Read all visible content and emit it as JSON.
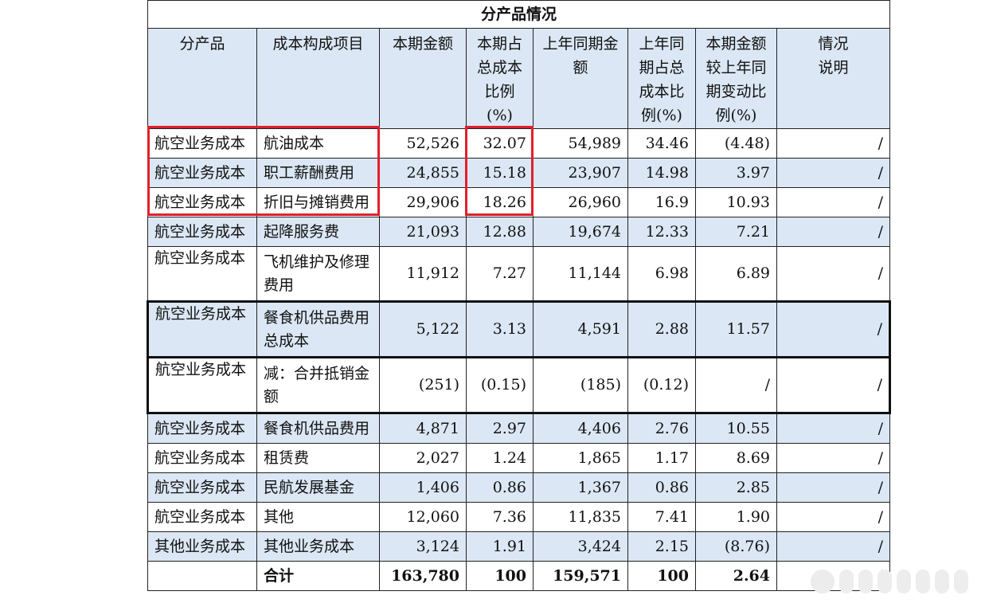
{
  "table": {
    "title": "分产品情况",
    "headers": [
      "分产品",
      "成本构成项目",
      "本期金额",
      "本期占\n总成本\n比例\n(%)",
      "上年同期金\n额",
      "上年同\n期占总\n成本比\n例(%)",
      "本期金额\n较上年同\n期变动比\n例(%)",
      "情况\n说明"
    ],
    "rows": [
      {
        "product": "航空业务成本",
        "item": "航油成本",
        "amount": "52,526",
        "share": "32.07",
        "prev_amount": "54,989",
        "prev_share": "34.46",
        "change": "(4.48)",
        "note": "/"
      },
      {
        "product": "航空业务成本",
        "item": "职工薪酬费用",
        "amount": "24,855",
        "share": "15.18",
        "prev_amount": "23,907",
        "prev_share": "14.98",
        "change": "3.97",
        "note": "/"
      },
      {
        "product": "航空业务成本",
        "item": "折旧与摊销费用",
        "amount": "29,906",
        "share": "18.26",
        "prev_amount": "26,960",
        "prev_share": "16.9",
        "change": "10.93",
        "note": "/"
      },
      {
        "product": "航空业务成本",
        "item": "起降服务费",
        "amount": "21,093",
        "share": "12.88",
        "prev_amount": "19,674",
        "prev_share": "12.33",
        "change": "7.21",
        "note": "/"
      },
      {
        "product": "航空业务成本",
        "item": "飞机维护及修理费用",
        "amount": "11,912",
        "share": "7.27",
        "prev_amount": "11,144",
        "prev_share": "6.98",
        "change": "6.89",
        "note": "/"
      },
      {
        "product": "航空业务成本",
        "item": "餐食机供品费用总成本",
        "amount": "5,122",
        "share": "3.13",
        "prev_amount": "4,591",
        "prev_share": "2.88",
        "change": "11.57",
        "note": "/"
      },
      {
        "product": "航空业务成本",
        "item": "减：合并抵销金额",
        "amount": "(251)",
        "share": "(0.15)",
        "prev_amount": "(185)",
        "prev_share": "(0.12)",
        "change": "/",
        "note": "/"
      },
      {
        "product": "航空业务成本",
        "item": "餐食机供品费用",
        "amount": "4,871",
        "share": "2.97",
        "prev_amount": "4,406",
        "prev_share": "2.76",
        "change": "10.55",
        "note": "/"
      },
      {
        "product": "航空业务成本",
        "item": "租赁费",
        "amount": "2,027",
        "share": "1.24",
        "prev_amount": "1,865",
        "prev_share": "1.17",
        "change": "8.69",
        "note": "/"
      },
      {
        "product": "航空业务成本",
        "item": "民航发展基金",
        "amount": "1,406",
        "share": "0.86",
        "prev_amount": "1,367",
        "prev_share": "0.86",
        "change": "2.85",
        "note": "/"
      },
      {
        "product": "航空业务成本",
        "item": "其他",
        "amount": "12,060",
        "share": "7.36",
        "prev_amount": "11,835",
        "prev_share": "7.41",
        "change": "1.90",
        "note": "/"
      },
      {
        "product": "其他业务成本",
        "item": "其他业务成本",
        "amount": "3,124",
        "share": "1.91",
        "prev_amount": "3,424",
        "prev_share": "2.15",
        "change": "(8.76)",
        "note": "/"
      },
      {
        "product": "",
        "item": "合计",
        "amount": "163,780",
        "share": "100",
        "prev_amount": "159,571",
        "prev_share": "100",
        "change": "2.64",
        "note": "/"
      }
    ]
  },
  "colors": {
    "row_blue": "#dbe7f4",
    "highlight_red": "#e0202c",
    "border": "#222222"
  }
}
